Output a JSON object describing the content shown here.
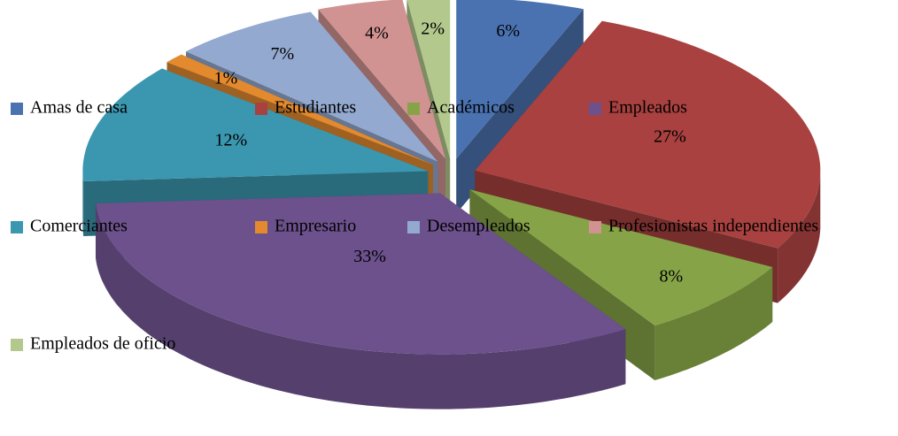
{
  "chart_data": {
    "type": "pie",
    "categories": [
      "Amas de casa",
      "Estudiantes",
      "Académicos",
      "Empleados",
      "Comerciantes",
      "Empresario",
      "Desempleados",
      "Profesionistas independientes",
      "Empleados de oficio"
    ],
    "values": [
      6,
      27,
      8,
      33,
      12,
      1,
      7,
      4,
      2
    ],
    "value_labels": [
      "6%",
      "27%",
      "8%",
      "33%",
      "12%",
      "1%",
      "7%",
      "4%",
      "2%"
    ],
    "colors": [
      "#4a72b0",
      "#a8413f",
      "#86a447",
      "#6c518c",
      "#3b97b0",
      "#e38a2f",
      "#93a9cf",
      "#d09392",
      "#b3c88c"
    ]
  }
}
